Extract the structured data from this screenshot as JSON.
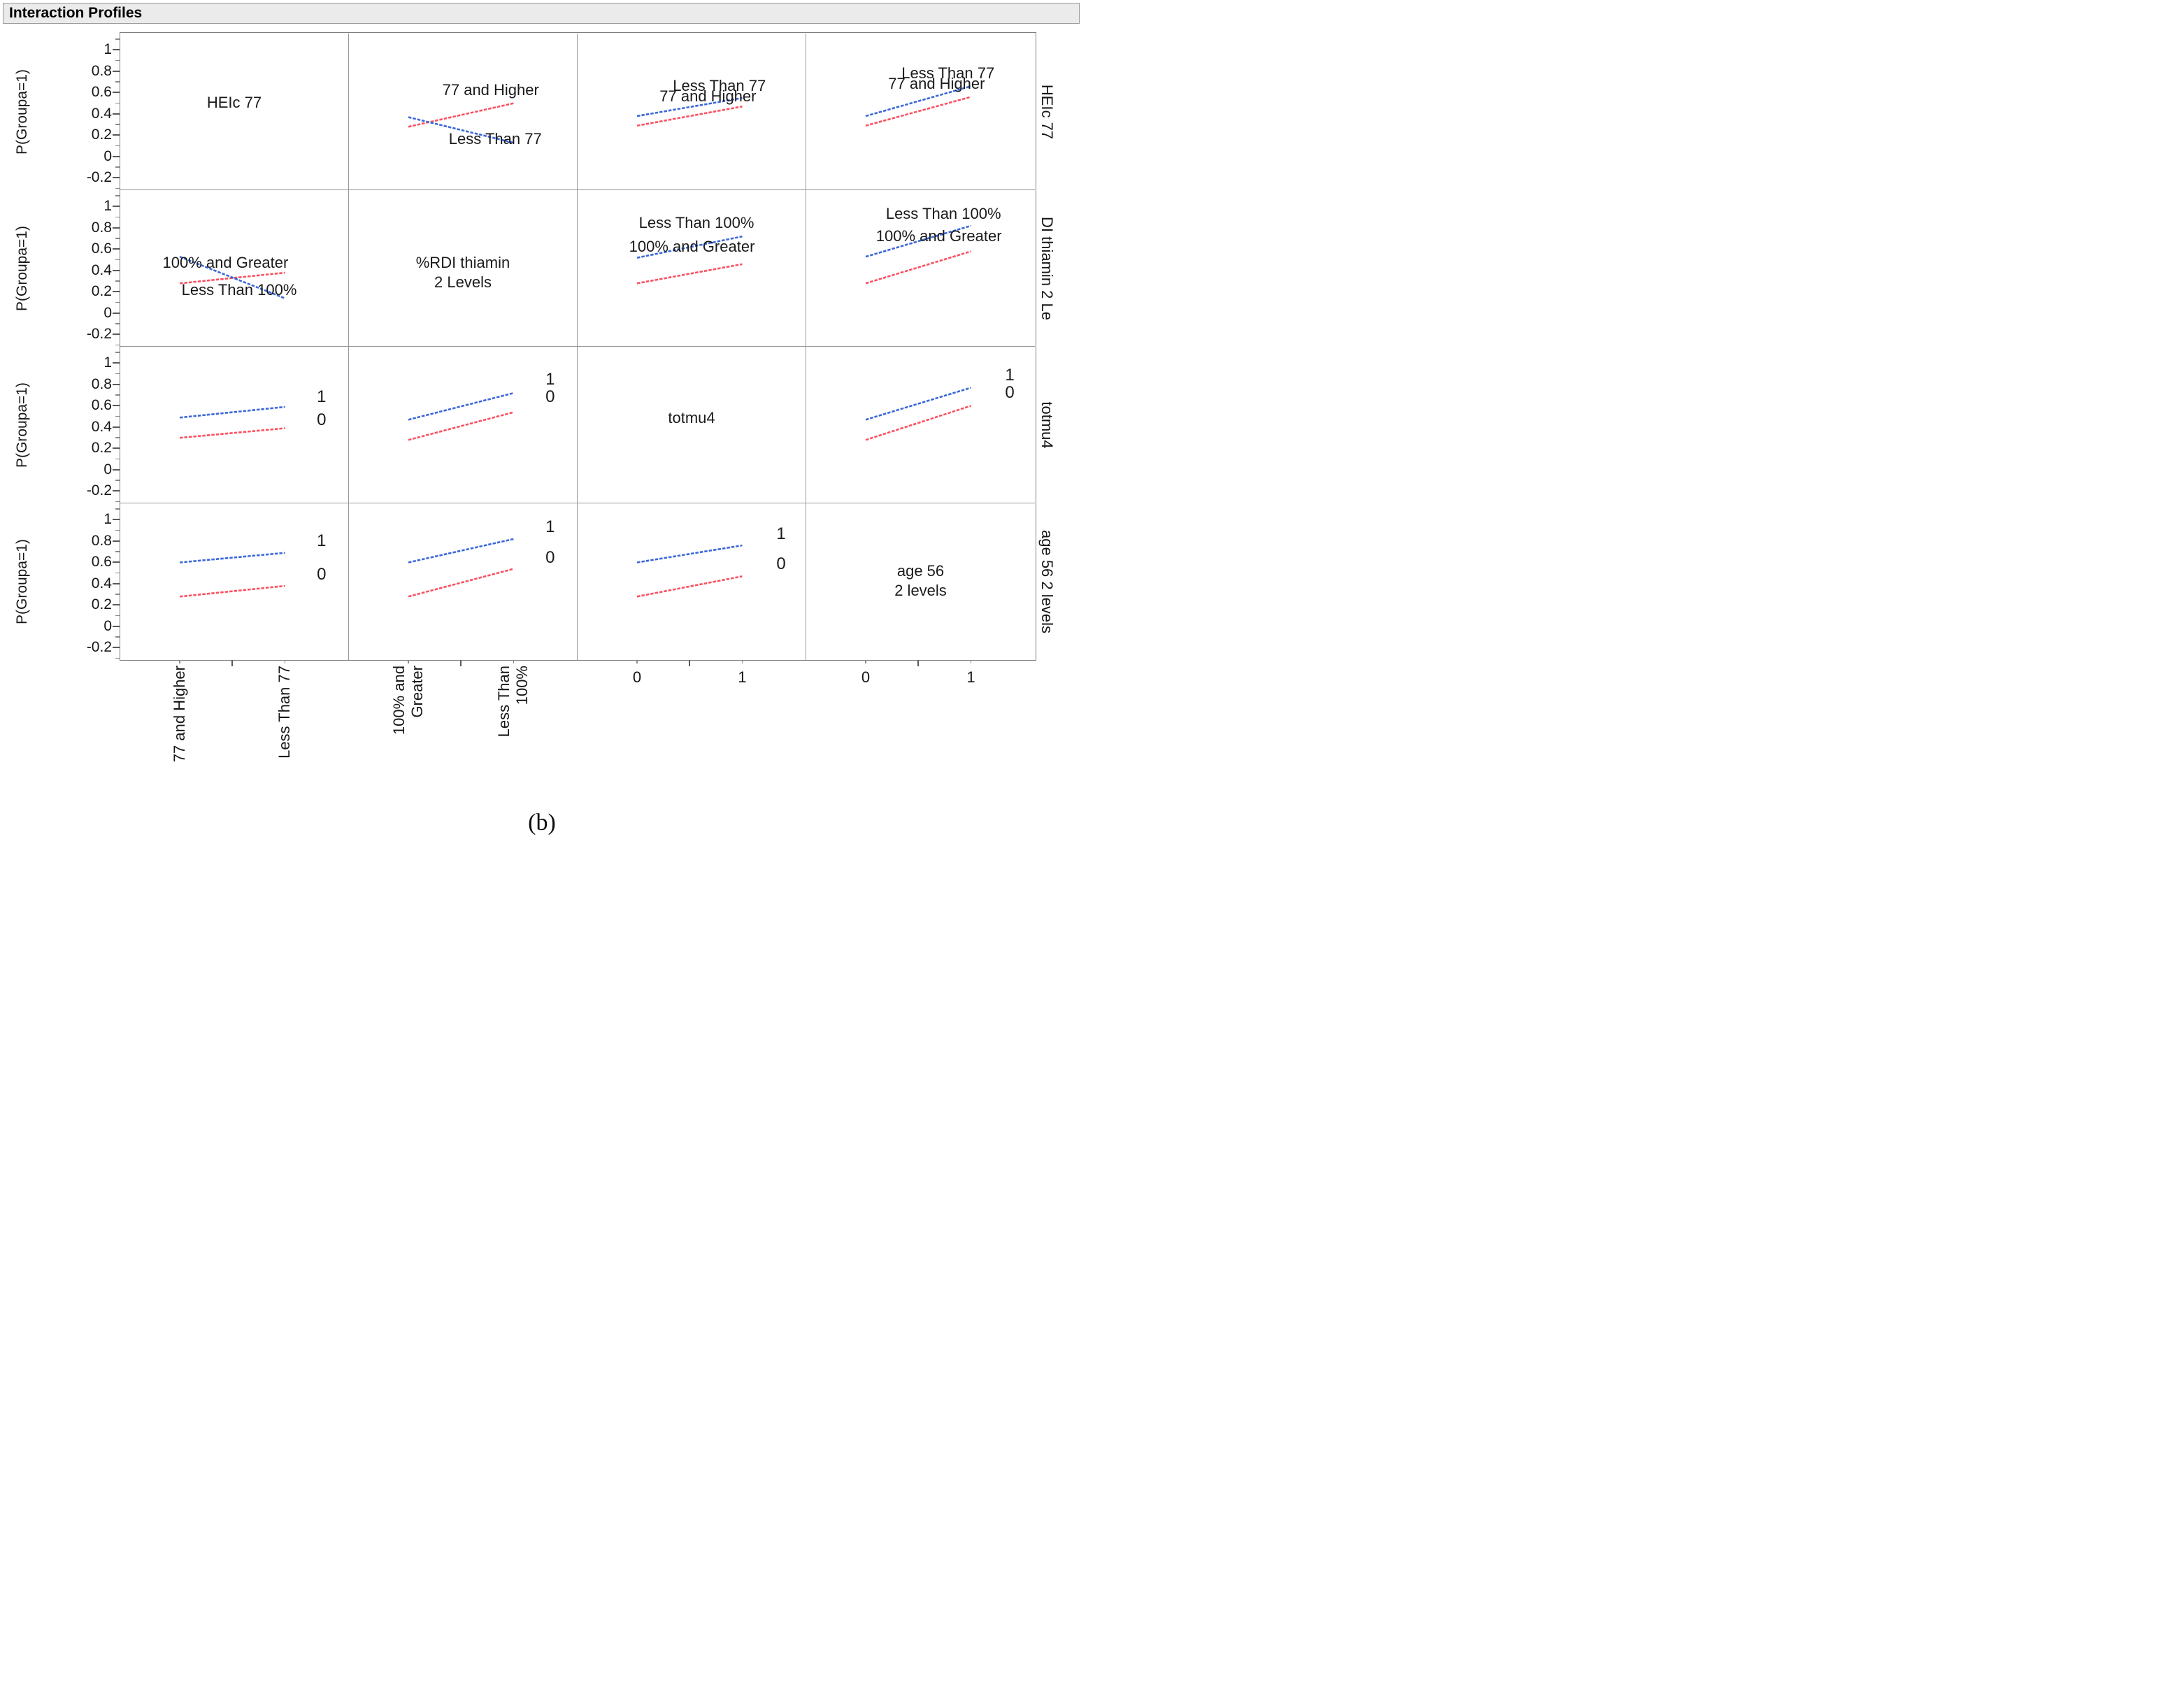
{
  "window": {
    "title": "Interaction Profiles"
  },
  "caption": "(b)",
  "chart_data": {
    "type": "line",
    "subtype": "interaction-profiles-matrix",
    "title": "Interaction Profiles",
    "ylabel": "P(Groupa=1)",
    "ylim": [
      -0.31,
      1.15
    ],
    "ytick_labels": [
      "1",
      "0.8",
      "0.6",
      "0.4",
      "0.2",
      "0",
      "-0.2"
    ],
    "yticks_major": [
      1,
      0.8,
      0.6,
      0.4,
      0.2,
      0,
      -0.2
    ],
    "yticks_minor": [
      1.1,
      0.9,
      0.7,
      0.5,
      0.3,
      0.1,
      -0.1,
      -0.3
    ],
    "x_category_positions": [
      0.26,
      0.72
    ],
    "grid": "off",
    "legend_position": "labels-on-lines",
    "colors": {
      "blue": "#3B68D9",
      "red": "#FA5060"
    },
    "factors": [
      {
        "name": "HEIc 77",
        "levels": [
          "77 and Higher",
          "Less Than 77"
        ]
      },
      {
        "name": "%RDI thiamin 2 Levels",
        "levels": [
          "100% and Greater",
          "Less Than 100%"
        ]
      },
      {
        "name": "totmu4",
        "levels": [
          "0",
          "1"
        ]
      },
      {
        "name": "age 56 2 levels",
        "levels": [
          "0",
          "1"
        ]
      }
    ],
    "right_row_labels": [
      "HEIc 77",
      "DI thiamin 2 Le",
      "totmu4",
      "age 56 2 levels"
    ],
    "bottom_axes": [
      {
        "rotated": true,
        "tick_labels": [
          [
            "77 and Higher"
          ],
          [
            "Less Than 77"
          ]
        ]
      },
      {
        "rotated": true,
        "tick_labels": [
          [
            "100% and",
            "Greater"
          ],
          [
            "Less Than",
            "100%"
          ]
        ]
      },
      {
        "rotated": false,
        "tick_labels": [
          [
            "0"
          ],
          [
            "1"
          ]
        ]
      },
      {
        "rotated": false,
        "tick_labels": [
          [
            "0"
          ],
          [
            "1"
          ]
        ]
      }
    ],
    "diagonal_center_v": [
      0.5,
      0.38,
      0.48,
      0.42
    ],
    "cells": [
      {
        "row": 0,
        "col": 0,
        "diagonal": [
          "HEIc 77"
        ]
      },
      {
        "row": 0,
        "col": 1,
        "series": [
          {
            "color": "red",
            "label": "77 and Higher",
            "values": [
              0.28,
              0.5
            ],
            "label_x": 0.62,
            "label_v": 0.62
          },
          {
            "color": "blue",
            "label": "Less Than 77",
            "values": [
              0.37,
              0.13
            ],
            "label_x": 0.64,
            "label_v": 0.16
          }
        ]
      },
      {
        "row": 0,
        "col": 2,
        "series": [
          {
            "color": "blue",
            "label": "Less Than 77",
            "values": [
              0.38,
              0.55
            ],
            "label_x": 0.62,
            "label_v": 0.66
          },
          {
            "color": "red",
            "label": "77 and Higher",
            "values": [
              0.29,
              0.47
            ],
            "label_x": 0.57,
            "label_v": 0.56
          }
        ]
      },
      {
        "row": 0,
        "col": 3,
        "series": [
          {
            "color": "blue",
            "label": "Less Than 77",
            "values": [
              0.38,
              0.66
            ],
            "label_x": 0.62,
            "label_v": 0.78
          },
          {
            "color": "red",
            "label": "77 and Higher",
            "values": [
              0.29,
              0.56
            ],
            "label_x": 0.57,
            "label_v": 0.68
          }
        ]
      },
      {
        "row": 1,
        "col": 0,
        "series": [
          {
            "color": "red",
            "label": "100% and Greater",
            "values": [
              0.28,
              0.38
            ],
            "label_x": 0.46,
            "label_v": 0.47
          },
          {
            "color": "blue",
            "label": "Less Than 100%",
            "values": [
              0.53,
              0.14
            ],
            "label_x": 0.52,
            "label_v": 0.21
          }
        ]
      },
      {
        "row": 1,
        "col": 1,
        "diagonal": [
          "%RDI thiamin",
          "2 Levels"
        ]
      },
      {
        "row": 1,
        "col": 2,
        "series": [
          {
            "color": "blue",
            "label": "Less Than 100%",
            "values": [
              0.52,
              0.72
            ],
            "label_x": 0.52,
            "label_v": 0.84
          },
          {
            "color": "red",
            "label": "100% and Greater",
            "values": [
              0.28,
              0.46
            ],
            "label_x": 0.5,
            "label_v": 0.62
          }
        ]
      },
      {
        "row": 1,
        "col": 3,
        "series": [
          {
            "color": "blue",
            "label": "Less Than 100%",
            "values": [
              0.53,
              0.82
            ],
            "label_x": 0.6,
            "label_v": 0.93
          },
          {
            "color": "red",
            "label": "100% and Greater",
            "values": [
              0.28,
              0.58
            ],
            "label_x": 0.58,
            "label_v": 0.72
          }
        ]
      },
      {
        "row": 2,
        "col": 0,
        "series": [
          {
            "color": "blue",
            "label": "1",
            "values": [
              0.49,
              0.59
            ],
            "label_x": 0.88,
            "label_v": 0.68
          },
          {
            "color": "red",
            "label": "0",
            "values": [
              0.3,
              0.39
            ],
            "label_x": 0.88,
            "label_v": 0.46
          }
        ]
      },
      {
        "row": 2,
        "col": 1,
        "series": [
          {
            "color": "blue",
            "label": "1",
            "values": [
              0.47,
              0.72
            ],
            "label_x": 0.88,
            "label_v": 0.84
          },
          {
            "color": "red",
            "label": "0",
            "values": [
              0.28,
              0.54
            ],
            "label_x": 0.88,
            "label_v": 0.68
          }
        ]
      },
      {
        "row": 2,
        "col": 2,
        "diagonal": [
          "totmu4"
        ]
      },
      {
        "row": 2,
        "col": 3,
        "series": [
          {
            "color": "blue",
            "label": "1",
            "values": [
              0.47,
              0.77
            ],
            "label_x": 0.89,
            "label_v": 0.88
          },
          {
            "color": "red",
            "label": "0",
            "values": [
              0.28,
              0.6
            ],
            "label_x": 0.89,
            "label_v": 0.72
          }
        ]
      },
      {
        "row": 3,
        "col": 0,
        "series": [
          {
            "color": "blue",
            "label": "1",
            "values": [
              0.6,
              0.69
            ],
            "label_x": 0.88,
            "label_v": 0.8
          },
          {
            "color": "red",
            "label": "0",
            "values": [
              0.28,
              0.38
            ],
            "label_x": 0.88,
            "label_v": 0.48
          }
        ]
      },
      {
        "row": 3,
        "col": 1,
        "series": [
          {
            "color": "blue",
            "label": "1",
            "values": [
              0.6,
              0.82
            ],
            "label_x": 0.88,
            "label_v": 0.93
          },
          {
            "color": "red",
            "label": "0",
            "values": [
              0.28,
              0.54
            ],
            "label_x": 0.88,
            "label_v": 0.64
          }
        ]
      },
      {
        "row": 3,
        "col": 2,
        "series": [
          {
            "color": "blue",
            "label": "1",
            "values": [
              0.6,
              0.76
            ],
            "label_x": 0.89,
            "label_v": 0.86
          },
          {
            "color": "red",
            "label": "0",
            "values": [
              0.28,
              0.47
            ],
            "label_x": 0.89,
            "label_v": 0.58
          }
        ]
      },
      {
        "row": 3,
        "col": 3,
        "diagonal": [
          "age 56",
          "2 levels"
        ]
      }
    ]
  }
}
